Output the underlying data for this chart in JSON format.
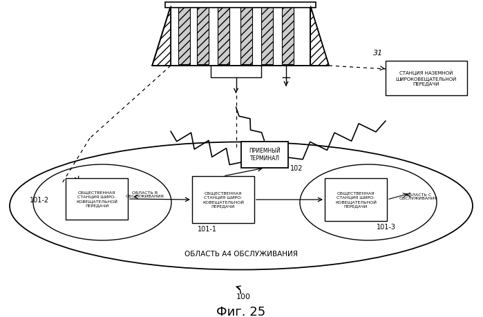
{
  "title": "Фиг. 25",
  "fig_number": "100",
  "label_31": "31",
  "label_102": "102",
  "label_101_1": "101-1",
  "label_101_2": "101-2",
  "label_101_3": "101-3",
  "text_area": "ОБЛАСТЬ А4 ОБСЛУЖИВАНИЯ",
  "text_terminal": "ПРИЕМНЫЙ\nТЕРМИНАЛ",
  "text_station31": "СТАНЦИЯ НАЗЕМНОЙ\nШИРОКОВЕЩАТЕЛЬНОЙ\nПЕРЕДАЧИ",
  "text_station_left": "ОБЩЕСТВЕННАЯ\nСТАНЦИЯ ШИРО-\nКОВЕЩАТЕЛЬНОЙ\nПЕРЕДАЧИ",
  "text_station_center": "ОБЩЕСТВЕННАЯ\nСТАНЦИЯ ШИРО-\nКОВЕЩАТЕЛЬНОЙ\nПЕРЕДАЧИ",
  "text_station_right": "ОБЩЕСТВЕННАЯ\nСТАНЦИЯ ШИРО-\nКОВЕЩАТЕЛЬНОЙ\nПЕРЕДАЧИ",
  "text_service_left": "ОБЛАСТЬ В\nОБСЛУЖИВАНИЯ",
  "text_service_right": "ОБЛАСТЬ С\nОБСЛУЖИВАНИЯ",
  "bg_color": "#ffffff",
  "lc": "#000000"
}
